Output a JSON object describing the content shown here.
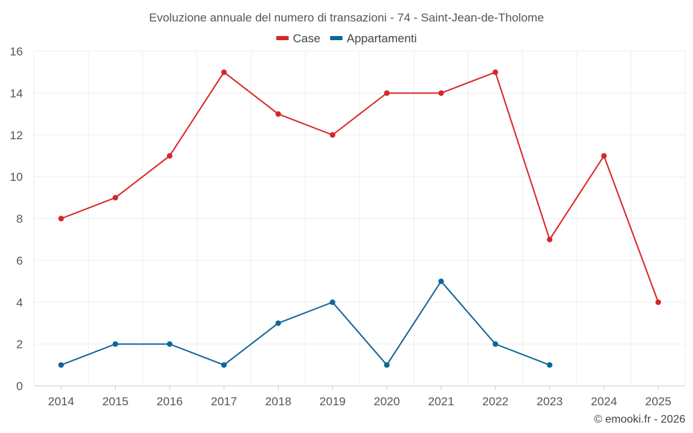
{
  "chart_data": {
    "type": "line",
    "title": "Evoluzione annuale del numero di transazioni - 74 - Saint-Jean-de-Tholome",
    "xlabel": "",
    "ylabel": "",
    "categories": [
      "2014",
      "2015",
      "2016",
      "2017",
      "2018",
      "2019",
      "2020",
      "2021",
      "2022",
      "2023",
      "2024",
      "2025"
    ],
    "ylim": [
      0,
      16
    ],
    "yticks": [
      0,
      2,
      4,
      6,
      8,
      10,
      12,
      14,
      16
    ],
    "grid": true,
    "legend_position": "top-center",
    "series": [
      {
        "name": "Case",
        "color": "#d62728",
        "values": [
          8,
          9,
          11,
          15,
          13,
          12,
          14,
          14,
          15,
          7,
          11,
          4
        ]
      },
      {
        "name": "Appartamenti",
        "color": "#0f6699",
        "values": [
          1,
          2,
          2,
          1,
          3,
          4,
          1,
          5,
          2,
          1,
          null,
          null
        ]
      }
    ]
  },
  "credit": "© emooki.fr - 2026"
}
